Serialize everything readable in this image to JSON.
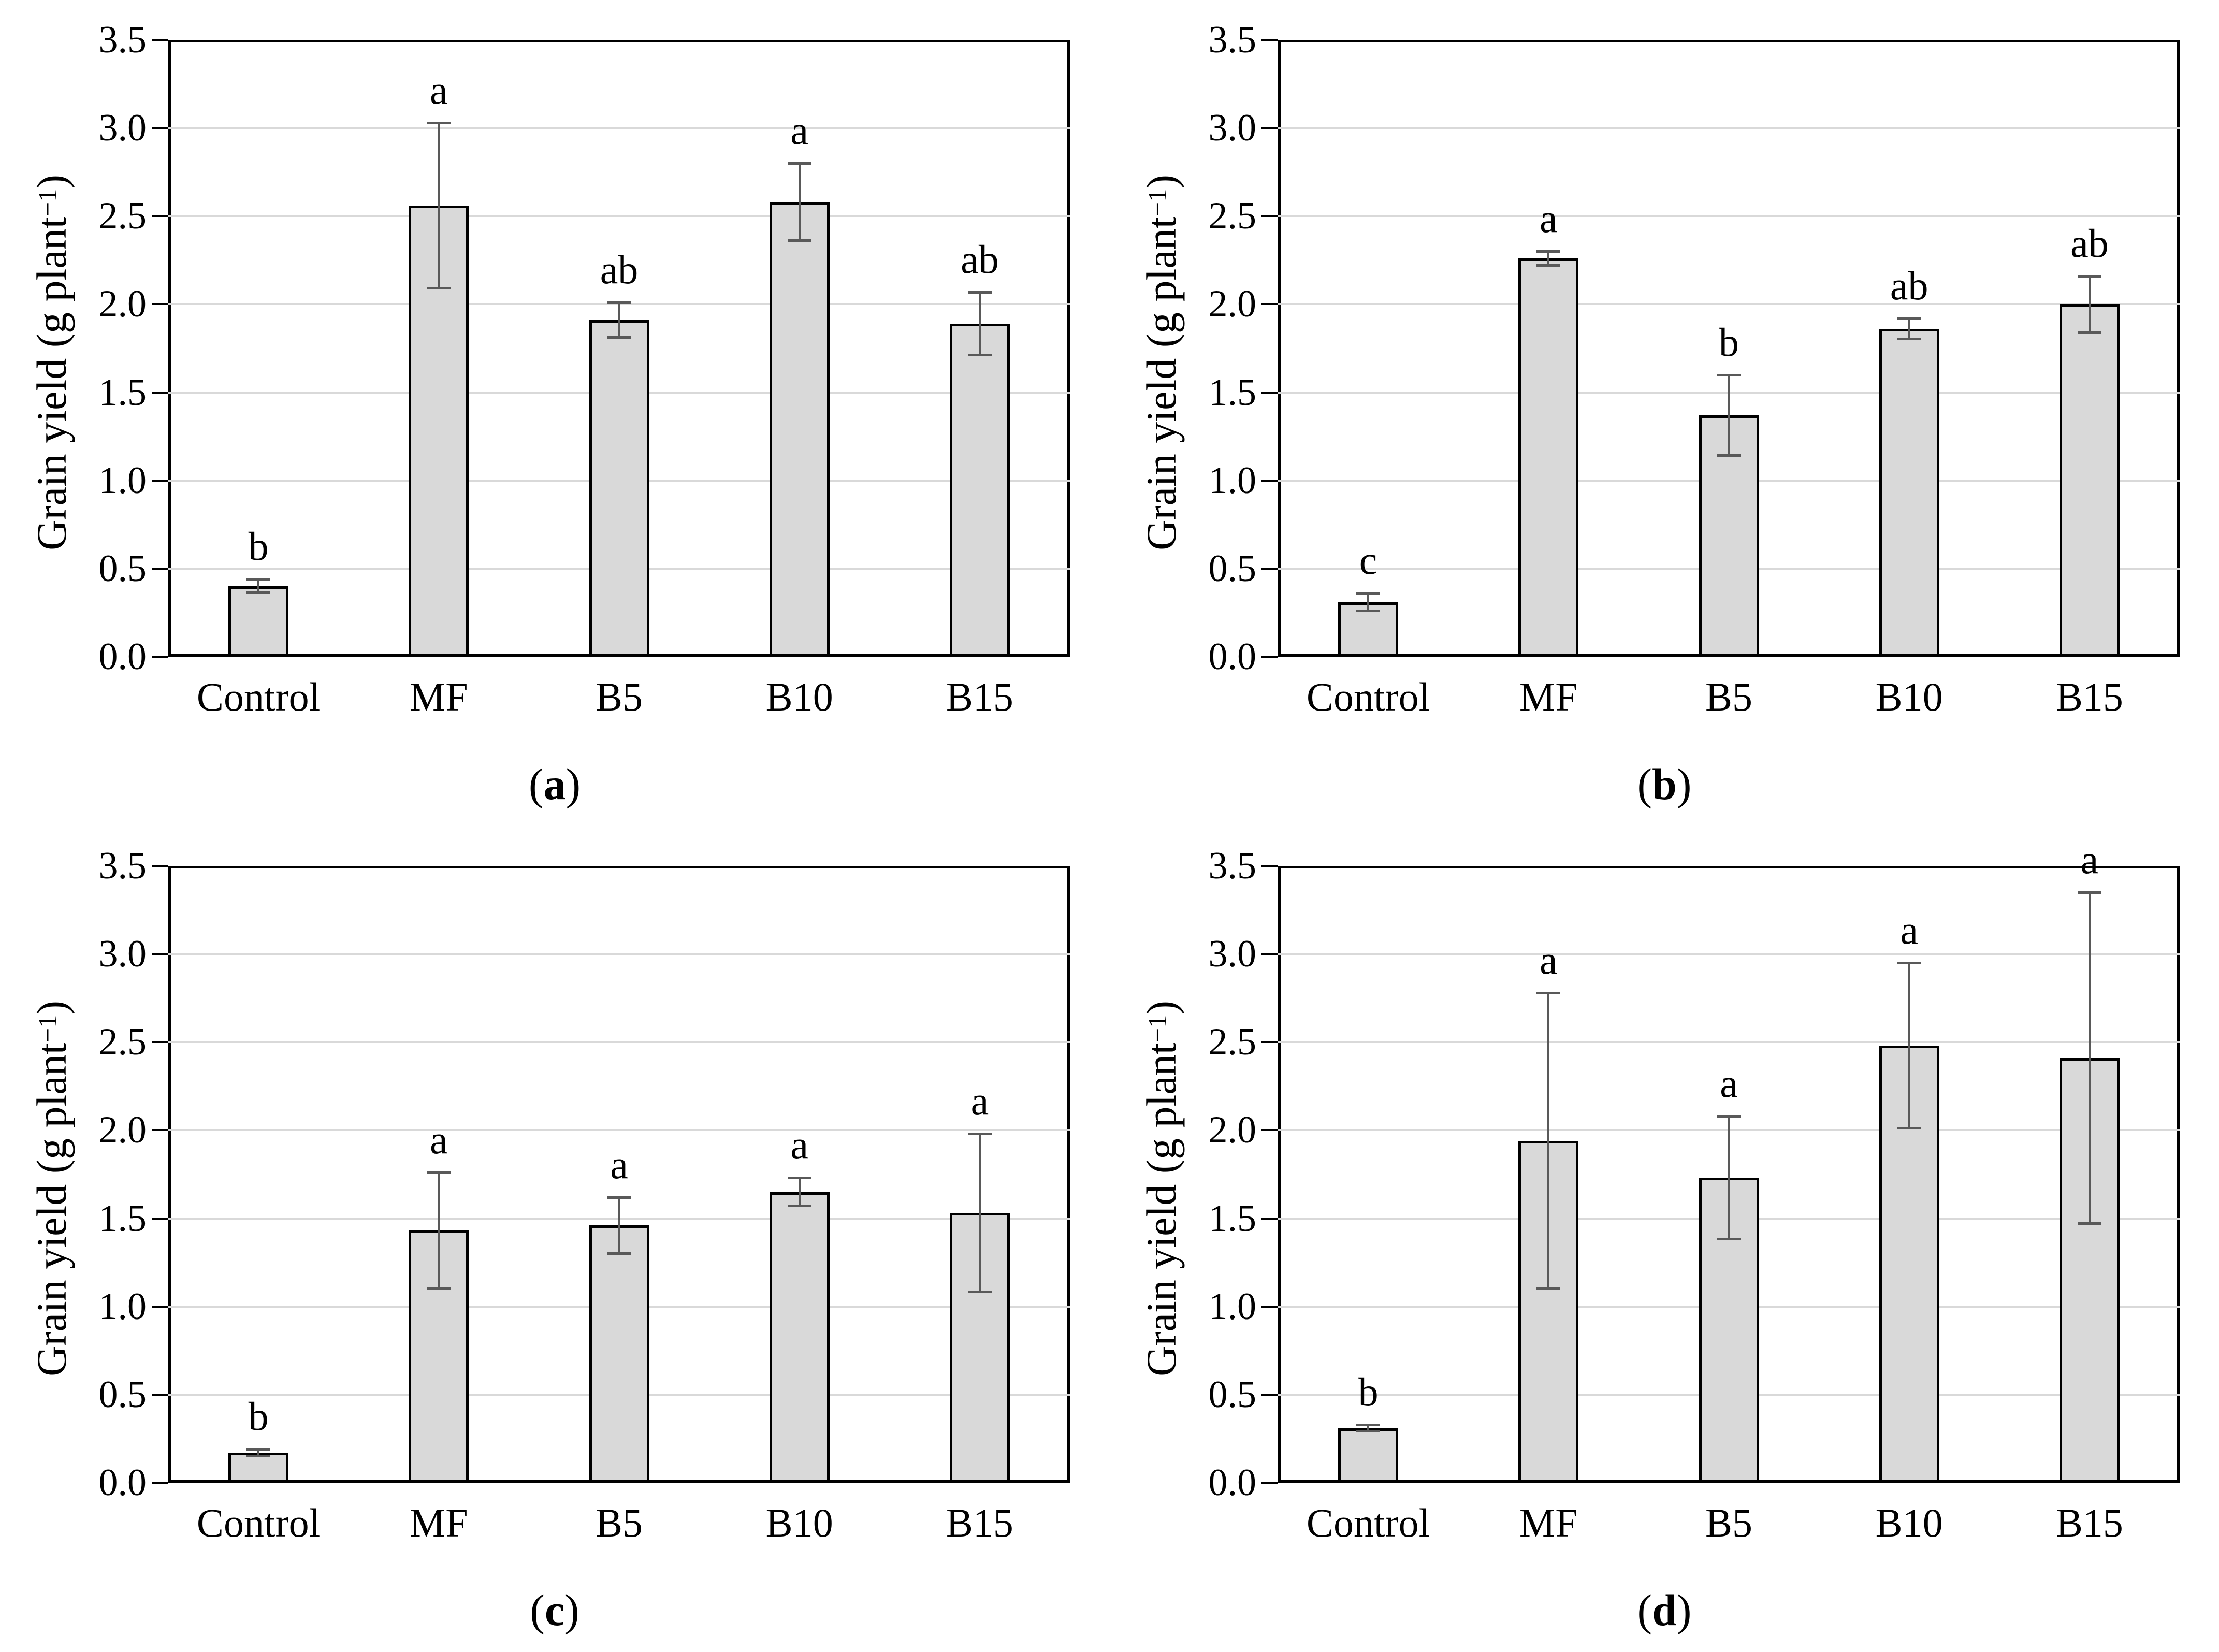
{
  "figure": {
    "ylabel_prefix": "Grain yield (g plant",
    "ylabel_sup": "−1",
    "ylabel_suffix": ")",
    "caption_open": "(",
    "caption_close": ")",
    "colors": {
      "background": "#ffffff",
      "bar_fill": "#d9d9d9",
      "bar_border": "#000000",
      "error_bar": "#595959",
      "gridline": "#d9d9d9",
      "axis": "#000000",
      "text": "#000000"
    }
  },
  "chart_data": [
    {
      "type": "bar",
      "panel": "a",
      "title": "",
      "xlabel": "",
      "ylabel": "Grain yield (g plant−1)",
      "ylim": [
        0,
        3.5
      ],
      "ytick_step": 0.5,
      "yticks": [
        "0.0",
        "0.5",
        "1.0",
        "1.5",
        "2.0",
        "2.5",
        "3.0",
        "3.5"
      ],
      "grid": true,
      "legend": false,
      "categories": [
        "Control",
        "MF",
        "B5",
        "B10",
        "B15"
      ],
      "values": [
        0.4,
        2.56,
        1.91,
        2.58,
        1.89
      ],
      "errors": [
        0.04,
        0.47,
        0.1,
        0.22,
        0.18
      ],
      "sig_letters": [
        "b",
        "a",
        "ab",
        "a",
        "ab"
      ]
    },
    {
      "type": "bar",
      "panel": "b",
      "title": "",
      "xlabel": "",
      "ylabel": "Grain yield (g plant−1)",
      "ylim": [
        0,
        3.5
      ],
      "ytick_step": 0.5,
      "yticks": [
        "0.0",
        "0.5",
        "1.0",
        "1.5",
        "2.0",
        "2.5",
        "3.0",
        "3.5"
      ],
      "grid": true,
      "legend": false,
      "categories": [
        "Control",
        "MF",
        "B5",
        "B10",
        "B15"
      ],
      "values": [
        0.31,
        2.26,
        1.37,
        1.86,
        2.0
      ],
      "errors": [
        0.05,
        0.04,
        0.23,
        0.06,
        0.16
      ],
      "sig_letters": [
        "c",
        "a",
        "b",
        "ab",
        "ab"
      ]
    },
    {
      "type": "bar",
      "panel": "c",
      "title": "",
      "xlabel": "",
      "ylabel": "Grain yield (g plant−1)",
      "ylim": [
        0,
        3.5
      ],
      "ytick_step": 0.5,
      "yticks": [
        "0.0",
        "0.5",
        "1.0",
        "1.5",
        "2.0",
        "2.5",
        "3.0",
        "3.5"
      ],
      "grid": true,
      "legend": false,
      "categories": [
        "Control",
        "MF",
        "B5",
        "B10",
        "B15"
      ],
      "values": [
        0.17,
        1.43,
        1.46,
        1.65,
        1.53
      ],
      "errors": [
        0.02,
        0.33,
        0.16,
        0.08,
        0.45
      ],
      "sig_letters": [
        "b",
        "a",
        "a",
        "a",
        "a"
      ]
    },
    {
      "type": "bar",
      "panel": "d",
      "title": "",
      "xlabel": "",
      "ylabel": "Grain yield (g plant−1)",
      "ylim": [
        0,
        3.5
      ],
      "ytick_step": 0.5,
      "yticks": [
        "0.0",
        "0.5",
        "1.0",
        "1.5",
        "2.0",
        "2.5",
        "3.0",
        "3.5"
      ],
      "grid": true,
      "legend": false,
      "categories": [
        "Control",
        "MF",
        "B5",
        "B10",
        "B15"
      ],
      "values": [
        0.31,
        1.94,
        1.73,
        2.48,
        2.41
      ],
      "errors": [
        0.02,
        0.84,
        0.35,
        0.47,
        0.94
      ],
      "sig_letters": [
        "b",
        "a",
        "a",
        "a",
        "a"
      ]
    }
  ]
}
